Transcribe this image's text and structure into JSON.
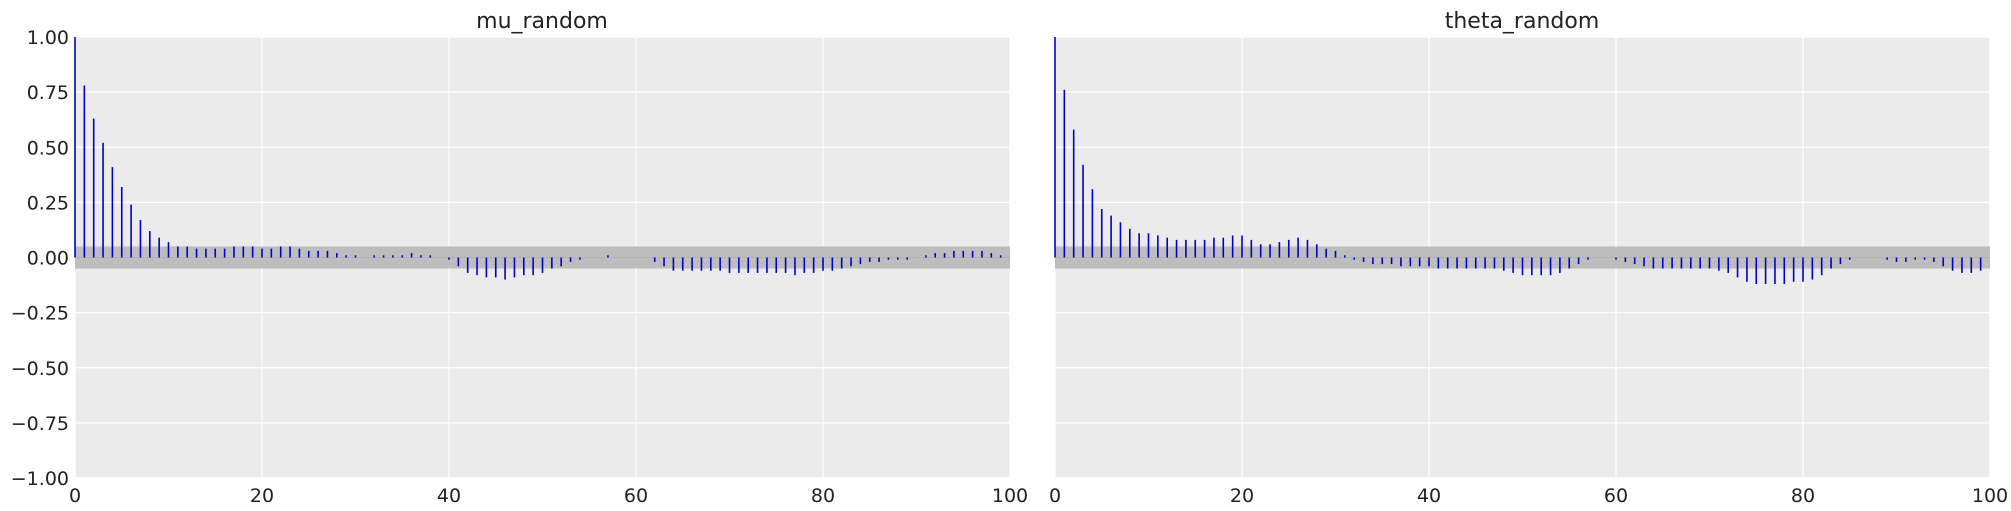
{
  "chart_data": [
    {
      "type": "bar",
      "subtype": "autocorrelation",
      "title": "mu_random",
      "xlabel": "",
      "ylabel": "",
      "xlim": [
        0,
        100
      ],
      "ylim": [
        -1.0,
        1.0
      ],
      "xticks": [
        "0",
        "20",
        "40",
        "60",
        "80",
        "100"
      ],
      "yticks": [
        "1.00",
        "0.75",
        "0.50",
        "0.25",
        "0.00",
        "−0.25",
        "−0.50",
        "−0.75",
        "−1.00"
      ],
      "grid": true,
      "confidence_band": [
        -0.05,
        0.05
      ],
      "lags": [
        0,
        1,
        2,
        3,
        4,
        5,
        6,
        7,
        8,
        9,
        10,
        11,
        12,
        13,
        14,
        15,
        16,
        17,
        18,
        19,
        20,
        21,
        22,
        23,
        24,
        25,
        26,
        27,
        28,
        29,
        30,
        31,
        32,
        33,
        34,
        35,
        36,
        37,
        38,
        39,
        40,
        41,
        42,
        43,
        44,
        45,
        46,
        47,
        48,
        49,
        50,
        51,
        52,
        53,
        54,
        55,
        56,
        57,
        58,
        59,
        60,
        61,
        62,
        63,
        64,
        65,
        66,
        67,
        68,
        69,
        70,
        71,
        72,
        73,
        74,
        75,
        76,
        77,
        78,
        79,
        80,
        81,
        82,
        83,
        84,
        85,
        86,
        87,
        88,
        89,
        90,
        91,
        92,
        93,
        94,
        95,
        96,
        97,
        98,
        99
      ],
      "values": [
        1.0,
        0.78,
        0.63,
        0.52,
        0.41,
        0.32,
        0.24,
        0.17,
        0.12,
        0.09,
        0.07,
        0.05,
        0.05,
        0.04,
        0.04,
        0.04,
        0.04,
        0.05,
        0.05,
        0.05,
        0.04,
        0.04,
        0.05,
        0.05,
        0.04,
        0.03,
        0.03,
        0.03,
        0.02,
        0.01,
        0.01,
        0.0,
        0.01,
        0.01,
        0.01,
        0.01,
        0.02,
        0.01,
        0.01,
        0.0,
        -0.01,
        -0.04,
        -0.07,
        -0.08,
        -0.09,
        -0.09,
        -0.1,
        -0.09,
        -0.08,
        -0.08,
        -0.07,
        -0.05,
        -0.04,
        -0.02,
        -0.01,
        0.0,
        0.0,
        0.01,
        0.0,
        0.0,
        0.0,
        0.0,
        -0.02,
        -0.04,
        -0.06,
        -0.06,
        -0.06,
        -0.06,
        -0.06,
        -0.06,
        -0.07,
        -0.07,
        -0.07,
        -0.07,
        -0.07,
        -0.07,
        -0.07,
        -0.08,
        -0.07,
        -0.07,
        -0.06,
        -0.06,
        -0.05,
        -0.04,
        -0.03,
        -0.02,
        -0.02,
        -0.01,
        -0.01,
        -0.01,
        0.0,
        0.01,
        0.02,
        0.02,
        0.03,
        0.03,
        0.03,
        0.03,
        0.02,
        0.01
      ],
      "color": "#0000cc",
      "band_color": "#bdbdbd"
    },
    {
      "type": "bar",
      "subtype": "autocorrelation",
      "title": "theta_random",
      "xlabel": "",
      "ylabel": "",
      "xlim": [
        0,
        100
      ],
      "ylim": [
        -1.0,
        1.0
      ],
      "xticks": [
        "0",
        "20",
        "40",
        "60",
        "80",
        "100"
      ],
      "grid": true,
      "confidence_band": [
        -0.05,
        0.05
      ],
      "lags": [
        0,
        1,
        2,
        3,
        4,
        5,
        6,
        7,
        8,
        9,
        10,
        11,
        12,
        13,
        14,
        15,
        16,
        17,
        18,
        19,
        20,
        21,
        22,
        23,
        24,
        25,
        26,
        27,
        28,
        29,
        30,
        31,
        32,
        33,
        34,
        35,
        36,
        37,
        38,
        39,
        40,
        41,
        42,
        43,
        44,
        45,
        46,
        47,
        48,
        49,
        50,
        51,
        52,
        53,
        54,
        55,
        56,
        57,
        58,
        59,
        60,
        61,
        62,
        63,
        64,
        65,
        66,
        67,
        68,
        69,
        70,
        71,
        72,
        73,
        74,
        75,
        76,
        77,
        78,
        79,
        80,
        81,
        82,
        83,
        84,
        85,
        86,
        87,
        88,
        89,
        90,
        91,
        92,
        93,
        94,
        95,
        96,
        97,
        98,
        99
      ],
      "values": [
        1.0,
        0.76,
        0.58,
        0.42,
        0.31,
        0.22,
        0.19,
        0.16,
        0.13,
        0.11,
        0.11,
        0.1,
        0.09,
        0.08,
        0.08,
        0.08,
        0.08,
        0.09,
        0.09,
        0.1,
        0.1,
        0.08,
        0.06,
        0.06,
        0.07,
        0.08,
        0.09,
        0.08,
        0.06,
        0.04,
        0.03,
        0.01,
        -0.01,
        -0.02,
        -0.03,
        -0.03,
        -0.03,
        -0.04,
        -0.04,
        -0.04,
        -0.04,
        -0.05,
        -0.05,
        -0.05,
        -0.05,
        -0.05,
        -0.05,
        -0.05,
        -0.06,
        -0.07,
        -0.08,
        -0.08,
        -0.08,
        -0.08,
        -0.07,
        -0.05,
        -0.03,
        -0.01,
        0.0,
        0.0,
        -0.01,
        -0.02,
        -0.03,
        -0.04,
        -0.05,
        -0.05,
        -0.05,
        -0.05,
        -0.05,
        -0.05,
        -0.05,
        -0.06,
        -0.07,
        -0.09,
        -0.11,
        -0.12,
        -0.12,
        -0.12,
        -0.12,
        -0.11,
        -0.11,
        -0.1,
        -0.08,
        -0.05,
        -0.03,
        -0.01,
        0.0,
        0.0,
        0.0,
        -0.01,
        -0.02,
        -0.02,
        -0.01,
        -0.01,
        -0.02,
        -0.04,
        -0.06,
        -0.07,
        -0.07,
        -0.06
      ],
      "color": "#0000cc",
      "band_color": "#bdbdbd"
    }
  ]
}
